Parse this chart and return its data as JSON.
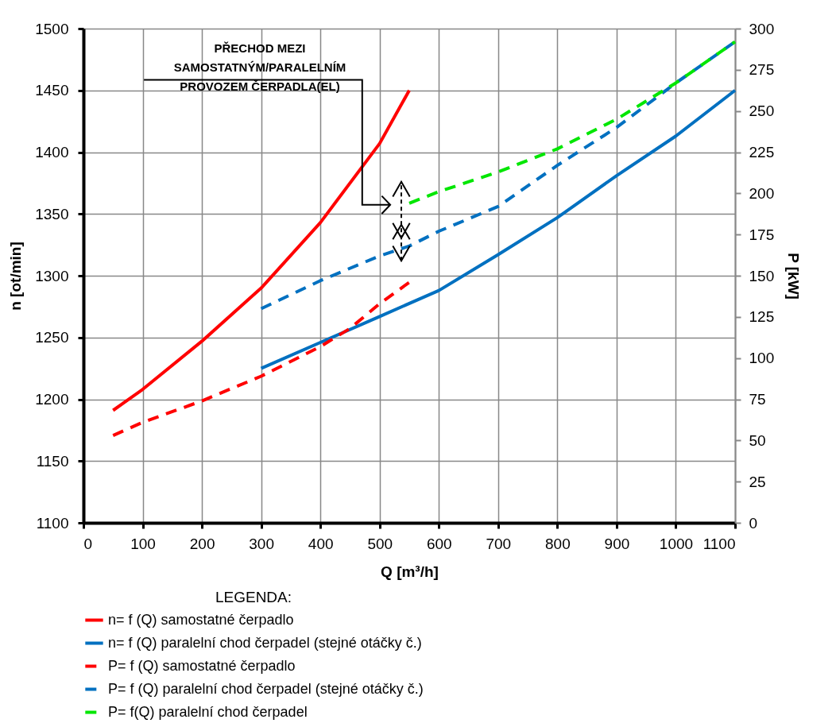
{
  "chart_data": {
    "type": "line",
    "xlabel": "Q [m³/h]",
    "ylabel": "n [ot/min]",
    "y2label": "P [kW]",
    "legend_title": "LEGENDA:",
    "xlim": [
      0,
      1100
    ],
    "xticks": [
      0,
      100,
      200,
      300,
      400,
      500,
      600,
      700,
      800,
      900,
      1000,
      1100
    ],
    "ylim": [
      1100,
      1500
    ],
    "yticks": [
      1100,
      1150,
      1200,
      1250,
      1300,
      1350,
      1400,
      1450,
      1500
    ],
    "y2lim": [
      0,
      300
    ],
    "y2ticks": [
      0,
      25,
      50,
      75,
      100,
      125,
      150,
      175,
      200,
      225,
      250,
      275,
      300
    ],
    "grid": true,
    "legend": "bottom",
    "marker": "none",
    "annotations": [
      "PŘECHOD MEZI SAMOSTATNÝM/PARALELNÍM PROVOZEM ČERPADLA(EL)"
    ],
    "series": [
      {
        "name": "n= f (Q) samostatné čerpadlo",
        "color": "#ff0000",
        "line_style": "solid",
        "x": [
          50,
          100,
          200,
          300,
          400,
          500,
          550
        ],
        "values": [
          1191,
          1208,
          1247,
          1290,
          1343,
          1407,
          1450
        ]
      },
      {
        "name": "n= f (Q) paralelní chod čerpadel (stejné otáčky č.)",
        "color": "#0070c0",
        "line_style": "solid",
        "x": [
          300,
          400,
          500,
          600,
          700,
          800,
          900,
          1000,
          1100
        ],
        "values": [
          1225,
          1246,
          1267,
          1288,
          1317,
          1347,
          1381,
          1413,
          1450
        ]
      },
      {
        "name": "P= f (Q) samostatné  čerpadlo",
        "color": "#ff0000",
        "line_style": "dashed",
        "axis": "y2",
        "x": [
          50,
          100,
          200,
          300,
          400,
          450,
          500,
          550
        ],
        "values": [
          53,
          61,
          74,
          89,
          107,
          118,
          133,
          146
        ]
      },
      {
        "name": "P= f (Q) paralelní chod čerpadel (stejné otáčky č.)",
        "color": "#0070c0",
        "line_style": "dashed",
        "axis": "y2",
        "x": [
          300,
          400,
          500,
          550,
          600,
          700,
          800,
          900,
          1000,
          1100
        ],
        "values": [
          130,
          147,
          162,
          168,
          177,
          192,
          217,
          240,
          267,
          292
        ]
      },
      {
        "name": "P= f(Q) paralelní chod čerpadel",
        "color": "#00e600",
        "line_style": "dashed",
        "axis": "y2",
        "x": [
          550,
          600,
          700,
          800,
          900,
          1000,
          1100
        ],
        "values": [
          194,
          201,
          213,
          227,
          245,
          267,
          292
        ]
      }
    ]
  }
}
